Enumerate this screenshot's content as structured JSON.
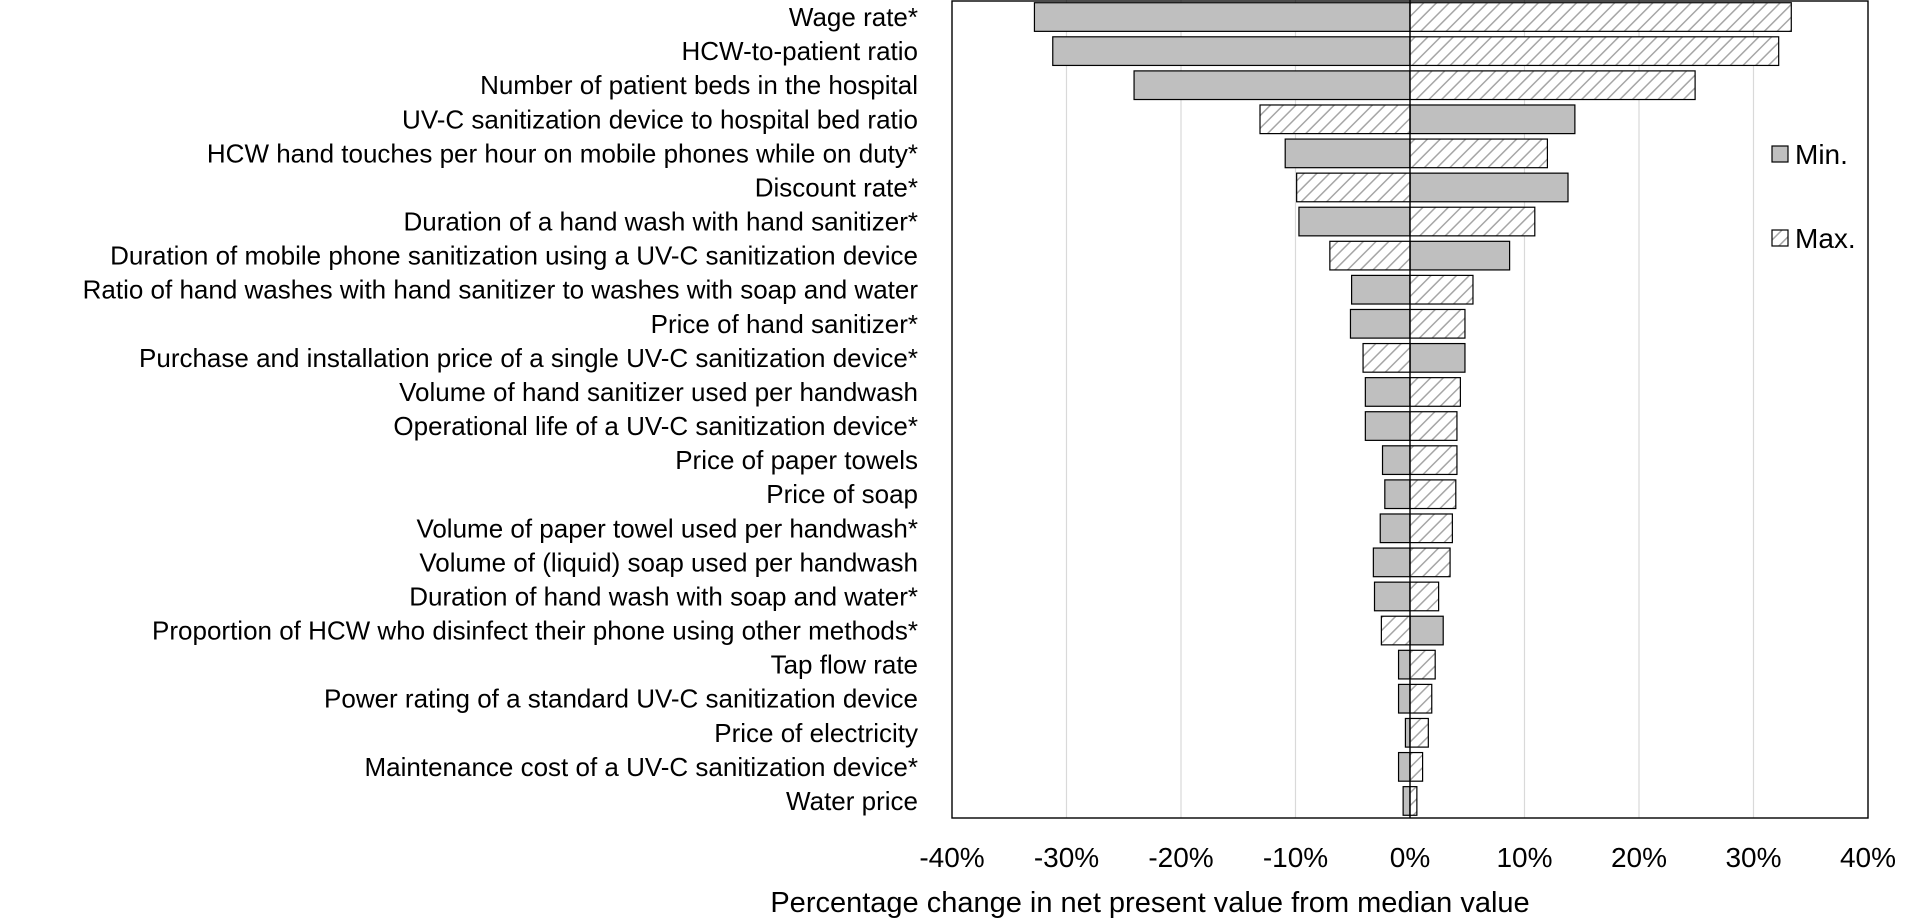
{
  "chart_data": {
    "type": "bar",
    "orientation": "horizontal",
    "title": "",
    "xlabel": "Percentage change in net present value from median value",
    "ylabel": "",
    "xlim": [
      -40,
      40
    ],
    "xticks": [
      -40,
      -30,
      -20,
      -10,
      0,
      10,
      20,
      30,
      40
    ],
    "xtick_labels": [
      "-40%",
      "-30%",
      "-20%",
      "-10%",
      "0%",
      "10%",
      "20%",
      "30%",
      "40%"
    ],
    "grid": "vertical",
    "legend_position": "right",
    "categories": [
      "Wage rate*",
      "HCW-to-patient ratio",
      "Number of patient beds in the hospital",
      "UV-C sanitization device to hospital bed ratio",
      "HCW hand touches per hour on mobile phones while on duty*",
      "Discount rate*",
      "Duration of a hand wash with hand sanitizer*",
      "Duration of mobile phone sanitization using a UV-C sanitization device",
      "Ratio of hand washes with hand sanitizer to washes with soap and water",
      "Price of hand sanitizer*",
      "Purchase and installation price of a single UV-C sanitization device*",
      "Volume of hand sanitizer used per handwash",
      "Operational life of a UV-C sanitization device*",
      "Price of paper towels",
      "Price of soap",
      "Volume of paper towel used per handwash*",
      "Volume of (liquid) soap used per handwash",
      "Duration of hand wash with soap and water*",
      "Proportion of HCW who disinfect their phone using other methods*",
      "Tap flow rate",
      "Power rating of a standard UV-C sanitization device",
      "Price of electricity",
      "Maintenance cost of a UV-C sanitization device*",
      "Water price"
    ],
    "series": [
      {
        "name": "Min.",
        "fill": "solid-gray",
        "values": [
          -32.8,
          -31.2,
          -24.1,
          14.4,
          -10.9,
          13.8,
          -9.7,
          8.7,
          -5.1,
          -5.2,
          4.8,
          -3.9,
          -3.9,
          -2.4,
          -2.2,
          -2.6,
          -3.2,
          -3.1,
          2.9,
          -1.0,
          -1.0,
          -0.4,
          -1.0,
          -0.6
        ]
      },
      {
        "name": "Max.",
        "fill": "hatched",
        "values": [
          33.3,
          32.2,
          24.9,
          -13.1,
          12.0,
          -9.9,
          10.9,
          -7.0,
          5.5,
          4.8,
          -4.1,
          4.4,
          4.1,
          4.1,
          4.0,
          3.7,
          3.5,
          2.5,
          -2.5,
          2.2,
          1.9,
          1.6,
          1.1,
          0.6
        ]
      }
    ]
  },
  "colors": {
    "min_fill": "#bfbfbf",
    "max_fill": "#ffffff",
    "hatch_stroke": "#a6a6a6",
    "bar_stroke": "#000000",
    "grid": "#d9d9d9"
  }
}
